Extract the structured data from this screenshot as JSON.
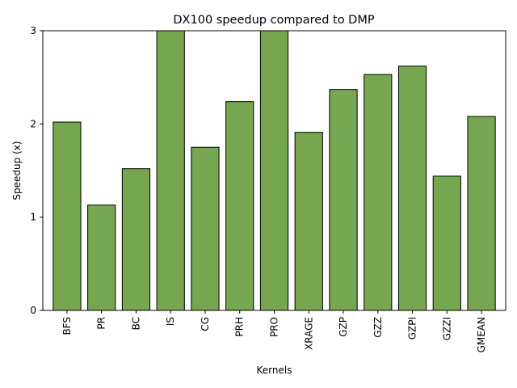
{
  "chart_data": {
    "type": "bar",
    "title": "DX100 speedup compared to DMP",
    "xlabel": "Kernels",
    "ylabel": "Speedup (x)",
    "categories": [
      "BFS",
      "PR",
      "BC",
      "IS",
      "CG",
      "PRH",
      "PRO",
      "XRAGE",
      "GZP",
      "GZZ",
      "GZPI",
      "GZZI",
      "GMEAN"
    ],
    "values": [
      2.02,
      1.13,
      1.52,
      3.0,
      1.75,
      2.24,
      3.0,
      1.91,
      2.37,
      2.53,
      2.62,
      1.44,
      2.08
    ],
    "ylim": [
      0,
      3
    ],
    "yticks": [
      0,
      1,
      2,
      3
    ],
    "grid": false,
    "bar_color": "#76a650",
    "edge_color": "#000000"
  }
}
